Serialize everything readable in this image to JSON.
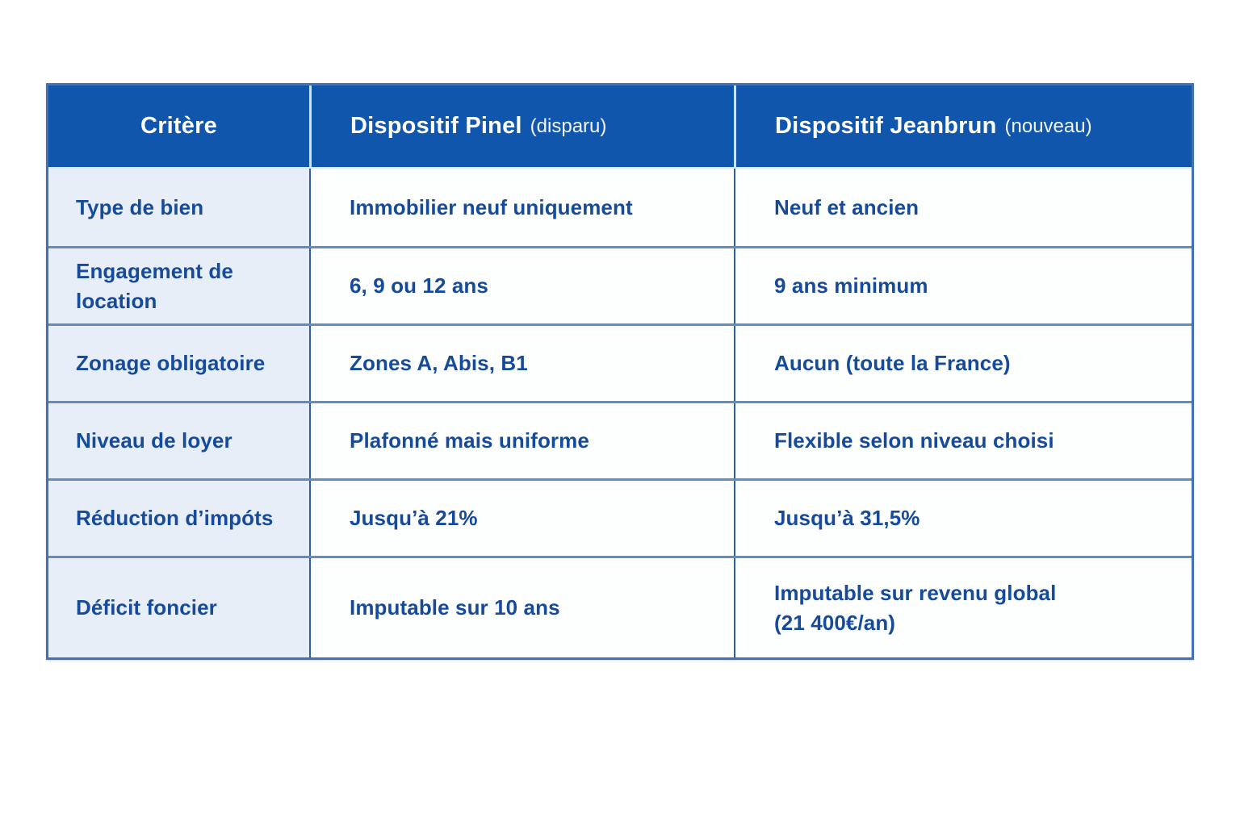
{
  "table": {
    "header": {
      "criteria": "Critère",
      "pinel_title": "Dispositif Pinel",
      "pinel_note": "(disparu)",
      "jeanbrun_title": "Dispositif Jeanbrun",
      "jeanbrun_note": "(nouveau)"
    },
    "rows": [
      {
        "critere": "Type de bien",
        "pinel": "Immobilier neuf uniquement",
        "jeanbrun": "Neuf et ancien"
      },
      {
        "critere": "Engagement de location",
        "pinel": "6, 9 ou 12 ans",
        "jeanbrun": "9 ans minimum"
      },
      {
        "critere": "Zonage obligatoire",
        "pinel": "Zones A, Abis, B1",
        "jeanbrun": "Aucun (toute la France)"
      },
      {
        "critere": "Niveau de loyer",
        "pinel": "Plafonné mais uniforme",
        "jeanbrun": "Flexible selon niveau choisi"
      },
      {
        "critere": "Réduction d’impóts",
        "pinel": "Jusqu’à 21%",
        "jeanbrun": "Jusqu’à 31,5%"
      },
      {
        "critere": "Déficit foncier",
        "pinel": "Imputable sur 10 ans",
        "jeanbrun": "Imputable sur revenu global\n(21 400€/an)"
      }
    ],
    "colors": {
      "header_bg": "#1156ad",
      "header_text": "#ffffff",
      "criteria_column_bg": "#e7eef7",
      "cell_text": "#164a9a",
      "row_divider": "#5d8cc7",
      "column_divider": "#2e5ca6",
      "outer_border": "#4472b1"
    }
  },
  "chart_data": {
    "type": "table",
    "columns": [
      "Critère",
      "Dispositif Pinel (disparu)",
      "Dispositif Jeanbrun (nouveau)"
    ],
    "rows": [
      [
        "Type de bien",
        "Immobilier neuf uniquement",
        "Neuf et ancien"
      ],
      [
        "Engagement de location",
        "6, 9 ou 12 ans",
        "9 ans minimum"
      ],
      [
        "Zonage obligatoire",
        "Zones A, Abis, B1",
        "Aucun (toute la France)"
      ],
      [
        "Niveau de loyer",
        "Plafonné mais uniforme",
        "Flexible selon niveau choisi"
      ],
      [
        "Réduction d’impóts",
        "Jusqu’à 21%",
        "Jusqu’à 31,5%"
      ],
      [
        "Déficit foncier",
        "Imputable sur 10 ans",
        "Imputable sur revenu global (21 400€/an)"
      ]
    ]
  }
}
